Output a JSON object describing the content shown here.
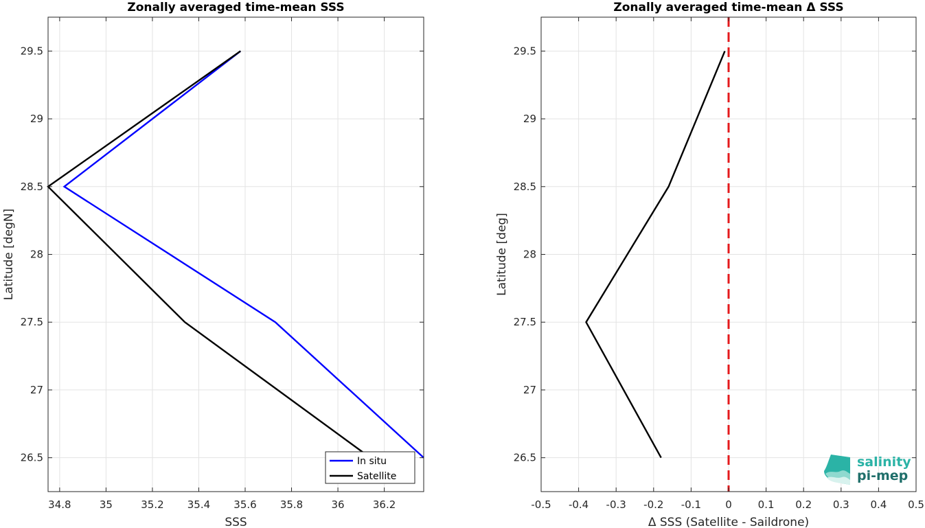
{
  "chart_data": [
    {
      "type": "line",
      "title": "Zonally averaged time-mean SSS",
      "xlabel": "SSS",
      "ylabel": "Latitude [degN]",
      "xlim": [
        34.75,
        36.37
      ],
      "ylim": [
        26.25,
        29.75
      ],
      "xticks": [
        34.8,
        35,
        35.2,
        35.4,
        35.6,
        35.8,
        36,
        36.2
      ],
      "xtick_labels": [
        "34.8",
        "35",
        "35.2",
        "35.4",
        "35.6",
        "35.8",
        "36",
        "36.2"
      ],
      "yticks": [
        26.5,
        27,
        27.5,
        28,
        28.5,
        29,
        29.5
      ],
      "ytick_labels": [
        "26.5",
        "27",
        "27.5",
        "28",
        "28.5",
        "29",
        "29.5"
      ],
      "grid": true,
      "legend": "bottom-right",
      "series": [
        {
          "name": "In situ",
          "color": "#0000ff",
          "x": [
            36.37,
            35.73,
            34.82,
            35.58
          ],
          "y": [
            26.5,
            27.5,
            28.5,
            29.5
          ]
        },
        {
          "name": "Satellite",
          "color": "#000000",
          "x": [
            36.14,
            35.34,
            34.75,
            35.58
          ],
          "y": [
            26.5,
            27.5,
            28.5,
            29.5
          ]
        }
      ]
    },
    {
      "type": "line",
      "title": "Zonally averaged time-mean Δ SSS",
      "xlabel": "Δ SSS (Satellite - Saildrone)",
      "ylabel": "Latitude [deg]",
      "xlim": [
        -0.5,
        0.5
      ],
      "ylim": [
        26.25,
        29.75
      ],
      "xticks": [
        -0.5,
        -0.4,
        -0.3,
        -0.2,
        -0.1,
        0,
        0.1,
        0.2,
        0.3,
        0.4,
        0.5
      ],
      "xtick_labels": [
        "-0.5",
        "-0.4",
        "-0.3",
        "-0.2",
        "-0.1",
        "0",
        "0.1",
        "0.2",
        "0.3",
        "0.4",
        "0.5"
      ],
      "yticks": [
        26.5,
        27,
        27.5,
        28,
        28.5,
        29,
        29.5
      ],
      "ytick_labels": [
        "26.5",
        "27",
        "27.5",
        "28",
        "28.5",
        "29",
        "29.5"
      ],
      "grid": true,
      "reference_line": {
        "x": 0,
        "color": "#e41a1c",
        "style": "dashed"
      },
      "series": [
        {
          "color": "#000000",
          "x": [
            -0.18,
            -0.38,
            -0.16,
            -0.01
          ],
          "y": [
            26.5,
            27.5,
            28.5,
            29.5
          ]
        }
      ]
    }
  ],
  "logo": {
    "line1": "salinity",
    "line2": "pi-mep"
  }
}
